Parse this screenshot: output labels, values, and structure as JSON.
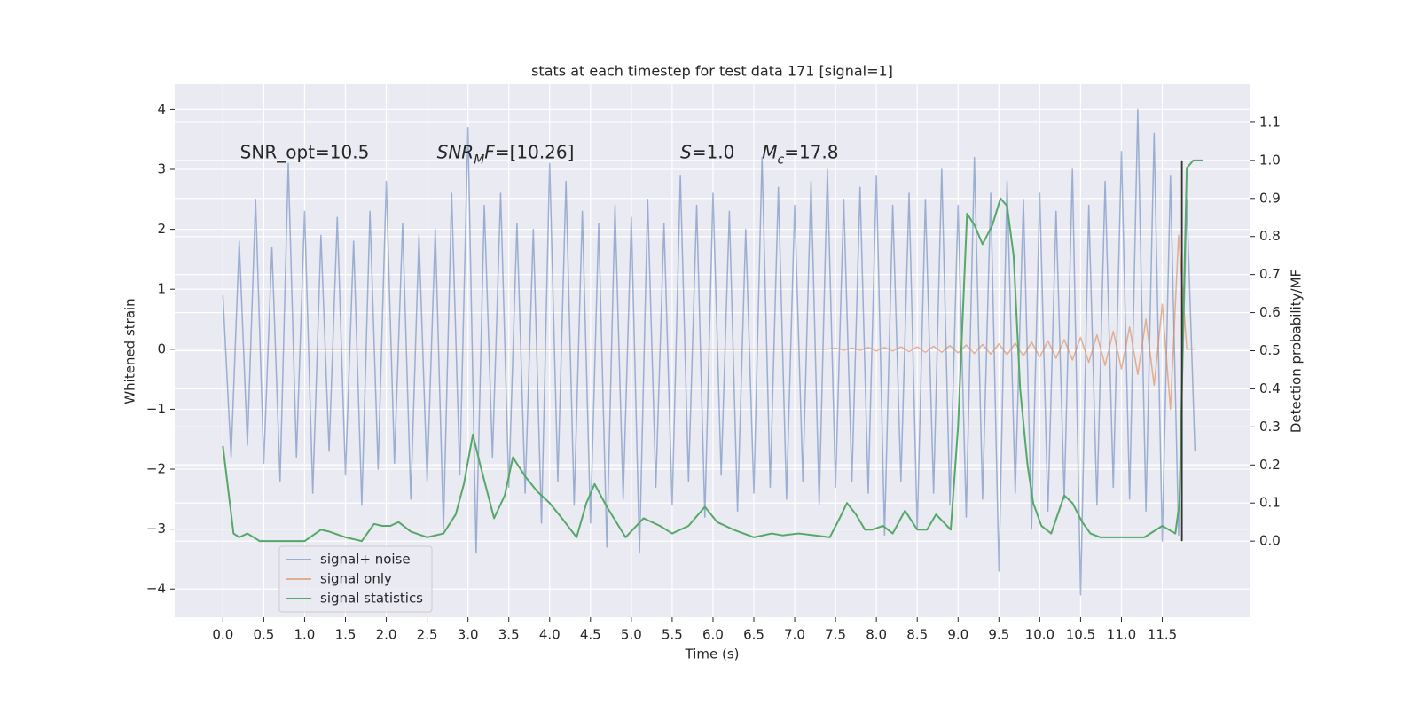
{
  "chart_data": {
    "type": "line",
    "title": "stats at each timestep for test data 171 [signal=1]",
    "xlabel": "Time (s)",
    "ylabel": "Whitened strain",
    "y2label": "Detection probability/MF",
    "xlim": [
      -0.59,
      12.58
    ],
    "ylim": [
      -4.47,
      4.42
    ],
    "y2lim": [
      -0.2,
      1.2
    ],
    "xticks": [
      {
        "value": 0,
        "label": "0.0"
      },
      0.5,
      {
        "value": 1,
        "label": "1.0"
      },
      1.5,
      {
        "value": 2,
        "label": "2.0"
      },
      2.5,
      {
        "value": 3,
        "label": "3.0"
      },
      3.5,
      {
        "value": 4,
        "label": "4.0"
      },
      4.5,
      {
        "value": 5,
        "label": "5.0"
      },
      5.5,
      {
        "value": 6,
        "label": "6.0"
      },
      6.5,
      {
        "value": 7,
        "label": "7.0"
      },
      7.5,
      {
        "value": 8,
        "label": "8.0"
      },
      8.5,
      {
        "value": 9,
        "label": "9.0"
      },
      9.5,
      {
        "value": 10,
        "label": "10.0"
      },
      10.5,
      {
        "value": 11,
        "label": "11.0"
      },
      11.5
    ],
    "yticks": [
      {
        "value": -4,
        "label": "−4"
      },
      {
        "value": -3,
        "label": "−3"
      },
      {
        "value": -2,
        "label": "−2"
      },
      {
        "value": -1,
        "label": "−1"
      },
      0,
      1,
      2,
      3,
      4
    ],
    "y2ticks": [
      {
        "value": 0,
        "label": "0.0"
      },
      0.1,
      0.2,
      0.3,
      0.4,
      0.5,
      0.6,
      0.7,
      0.8,
      0.9,
      {
        "value": 1,
        "label": "1.0"
      },
      1.1
    ],
    "grid": true,
    "legend": "lower left",
    "x": [
      0.0,
      0.1,
      0.2,
      0.3,
      0.4,
      0.5,
      0.6,
      0.7,
      0.8,
      0.9,
      1.0,
      1.1,
      1.2,
      1.3,
      1.4,
      1.5,
      1.6,
      1.7,
      1.8,
      1.9,
      2.0,
      2.1,
      2.2,
      2.3,
      2.4,
      2.5,
      2.6,
      2.7,
      2.8,
      2.9,
      3.0,
      3.1,
      3.2,
      3.3,
      3.4,
      3.5,
      3.6,
      3.7,
      3.8,
      3.9,
      4.0,
      4.1,
      4.2,
      4.3,
      4.4,
      4.5,
      4.6,
      4.7,
      4.8,
      4.9,
      5.0,
      5.1,
      5.2,
      5.3,
      5.4,
      5.5,
      5.6,
      5.7,
      5.8,
      5.9,
      6.0,
      6.1,
      6.2,
      6.3,
      6.4,
      6.5,
      6.6,
      6.7,
      6.8,
      6.9,
      7.0,
      7.1,
      7.2,
      7.3,
      7.4,
      7.5,
      7.6,
      7.7,
      7.8,
      7.9,
      8.0,
      8.1,
      8.2,
      8.3,
      8.4,
      8.5,
      8.6,
      8.7,
      8.8,
      8.9,
      9.0,
      9.1,
      9.2,
      9.3,
      9.4,
      9.5,
      9.6,
      9.7,
      9.8,
      9.9,
      10.0,
      10.1,
      10.2,
      10.3,
      10.4,
      10.5,
      10.6,
      10.7,
      10.8,
      10.9,
      11.0,
      11.1,
      11.2,
      11.3,
      11.4,
      11.5,
      11.6,
      11.7,
      11.8,
      11.9
    ],
    "series": [
      {
        "name": "signal+ noise",
        "color": "#4c72b0",
        "alpha": 0.5,
        "values": [
          0.9,
          -1.8,
          1.8,
          -1.6,
          2.5,
          -1.9,
          1.7,
          -2.2,
          3.1,
          -1.8,
          2.3,
          -2.4,
          1.9,
          -1.7,
          2.2,
          -2.1,
          1.8,
          -2.6,
          2.3,
          -2.0,
          2.8,
          -1.9,
          2.1,
          -2.5,
          1.9,
          -2.2,
          2.0,
          -3.0,
          2.6,
          -2.1,
          3.7,
          -3.4,
          2.4,
          -1.8,
          2.6,
          -2.3,
          2.1,
          -2.4,
          2.0,
          -2.9,
          3.1,
          -2.2,
          2.8,
          -2.6,
          2.3,
          -2.9,
          2.1,
          -3.3,
          2.4,
          -2.5,
          2.2,
          -3.4,
          2.5,
          -2.3,
          2.1,
          -2.6,
          2.9,
          -2.2,
          2.4,
          -2.8,
          2.6,
          -2.1,
          2.3,
          -2.7,
          2.0,
          -2.4,
          3.2,
          -2.3,
          2.7,
          -2.5,
          2.4,
          -2.2,
          2.8,
          -2.6,
          3.0,
          -2.3,
          2.5,
          -2.2,
          2.7,
          -2.4,
          2.9,
          -3.1,
          2.4,
          -2.2,
          2.6,
          -3.0,
          2.5,
          -2.4,
          3.0,
          -2.6,
          2.4,
          -2.8,
          3.2,
          -2.5,
          2.6,
          -3.7,
          2.8,
          -2.4,
          2.5,
          -3.0,
          2.6,
          -2.7,
          2.3,
          -2.5,
          3.0,
          -4.1,
          2.4,
          -2.6,
          2.8,
          -2.3,
          3.3,
          -2.5,
          4.0,
          -2.7,
          3.6,
          -3.2,
          2.9,
          -3.1,
          2.5,
          -1.7
        ]
      },
      {
        "name": "signal only",
        "color": "#dd8452",
        "alpha": 0.6,
        "values": [
          0,
          0,
          0,
          0,
          0,
          0,
          0,
          0,
          0,
          0,
          0,
          0,
          0,
          0,
          0,
          0,
          0,
          0,
          0,
          0,
          0,
          0,
          0,
          0,
          0,
          0,
          0,
          0,
          0,
          0,
          0,
          0,
          0,
          0,
          0,
          0,
          0,
          0,
          0,
          0,
          0,
          0,
          0,
          0,
          0,
          0,
          0,
          0,
          0,
          0,
          0,
          0,
          0,
          0,
          0,
          0,
          0,
          0,
          0,
          0,
          0,
          0,
          0,
          0,
          0,
          0,
          0,
          0,
          0,
          0,
          0,
          0,
          0,
          0,
          0,
          0.02,
          -0.02,
          0.02,
          -0.02,
          0.03,
          -0.03,
          0.03,
          -0.03,
          0.04,
          -0.04,
          0.04,
          -0.05,
          0.05,
          -0.05,
          0.06,
          -0.06,
          0.07,
          -0.07,
          0.08,
          -0.08,
          0.09,
          -0.09,
          0.1,
          -0.11,
          0.12,
          -0.13,
          0.14,
          -0.15,
          0.16,
          -0.18,
          0.2,
          -0.22,
          0.24,
          -0.27,
          0.3,
          -0.33,
          0.37,
          -0.42,
          0.5,
          -0.6,
          0.75,
          -1.0,
          1.9,
          0,
          0
        ]
      },
      {
        "name": "signal statistics",
        "color": "#55a868",
        "alpha": 1,
        "axis": "y2",
        "x": [
          0,
          0.13,
          0.2,
          0.3,
          0.45,
          0.7,
          1.0,
          1.2,
          1.3,
          1.5,
          1.7,
          1.85,
          1.95,
          2.05,
          2.15,
          2.3,
          2.5,
          2.7,
          2.85,
          2.95,
          3.06,
          3.15,
          3.32,
          3.45,
          3.55,
          3.7,
          3.85,
          4.0,
          4.15,
          4.33,
          4.45,
          4.55,
          4.7,
          4.93,
          5.15,
          5.35,
          5.5,
          5.7,
          5.9,
          6.05,
          6.25,
          6.5,
          6.72,
          6.85,
          7.05,
          7.25,
          7.43,
          7.55,
          7.64,
          7.75,
          7.86,
          7.95,
          8.08,
          8.2,
          8.35,
          8.5,
          8.62,
          8.73,
          8.91,
          9.0,
          9.11,
          9.2,
          9.3,
          9.42,
          9.52,
          9.6,
          9.68,
          9.76,
          9.85,
          9.92,
          10.02,
          10.14,
          10.3,
          10.4,
          10.52,
          10.62,
          10.74,
          11.0,
          11.28,
          11.5,
          11.66,
          11.71,
          11.76,
          11.8,
          11.88,
          12.0
        ],
        "values": [
          0.25,
          0.02,
          0.01,
          0.02,
          0.0,
          0.0,
          0.0,
          0.03,
          0.025,
          0.01,
          0.0,
          0.045,
          0.04,
          0.04,
          0.05,
          0.025,
          0.01,
          0.02,
          0.07,
          0.15,
          0.28,
          0.2,
          0.06,
          0.12,
          0.22,
          0.17,
          0.13,
          0.1,
          0.06,
          0.01,
          0.1,
          0.15,
          0.09,
          0.01,
          0.06,
          0.04,
          0.02,
          0.04,
          0.09,
          0.05,
          0.03,
          0.01,
          0.02,
          0.015,
          0.02,
          0.015,
          0.01,
          0.06,
          0.1,
          0.07,
          0.03,
          0.03,
          0.04,
          0.02,
          0.08,
          0.03,
          0.03,
          0.07,
          0.03,
          0.3,
          0.86,
          0.83,
          0.78,
          0.83,
          0.9,
          0.88,
          0.75,
          0.4,
          0.2,
          0.1,
          0.04,
          0.02,
          0.12,
          0.1,
          0.05,
          0.02,
          0.01,
          0.01,
          0.01,
          0.04,
          0.02,
          0.1,
          0.6,
          0.98,
          1.0,
          1.0
        ]
      }
    ],
    "markers": [
      {
        "x": 11.74,
        "y2": [
          0,
          1.0
        ],
        "color": "#333333"
      }
    ],
    "annotations": [
      {
        "x": 0.21,
        "y": 3.27,
        "parts": [
          {
            "text": "SNR_opt=10.5",
            "style": "normal"
          }
        ]
      },
      {
        "x": 2.62,
        "y": 3.27,
        "parts": [
          {
            "text": "SNR",
            "style": "italic"
          },
          {
            "text": "M",
            "style": "italic-sub"
          },
          {
            "text": "F",
            "style": "italic"
          },
          {
            "text": "=[10.26]",
            "style": "normal"
          }
        ]
      },
      {
        "x": 5.6,
        "y": 3.27,
        "parts": [
          {
            "text": "S",
            "style": "italic"
          },
          {
            "text": "=1.0",
            "style": "normal"
          }
        ]
      },
      {
        "x": 6.6,
        "y": 3.27,
        "parts": [
          {
            "text": "M",
            "style": "italic"
          },
          {
            "text": "c",
            "style": "italic-sub"
          },
          {
            "text": "=17.8",
            "style": "normal"
          }
        ]
      }
    ]
  }
}
